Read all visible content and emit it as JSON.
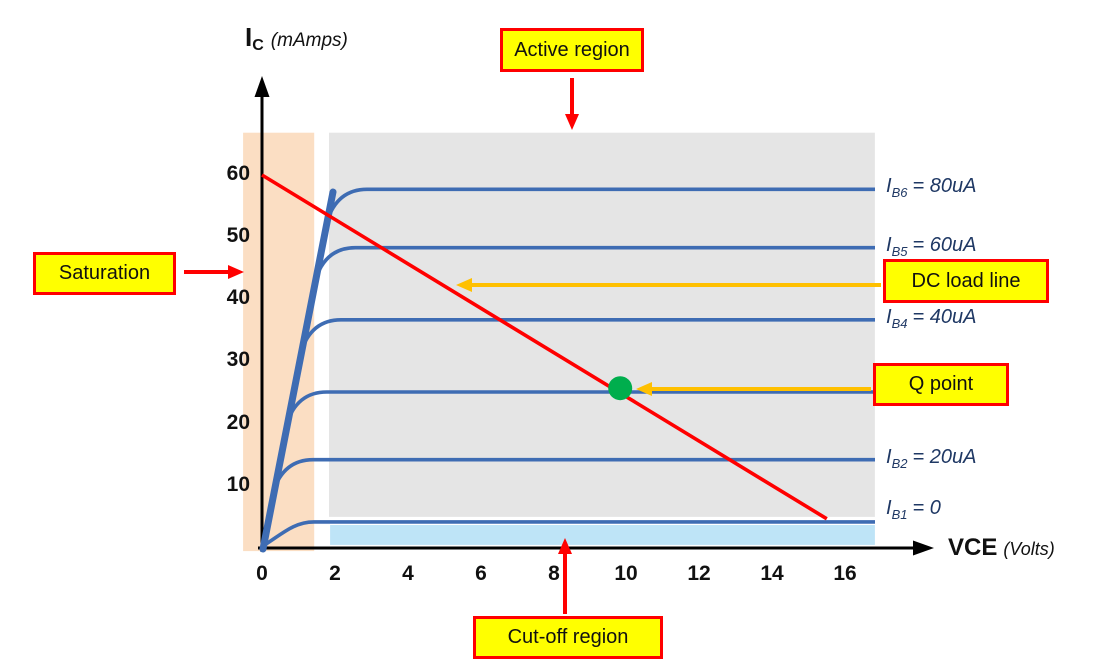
{
  "chart_data": {
    "type": "line",
    "x_axis": {
      "title": "VCE",
      "title_unit": "(Volts)",
      "ticks": [
        "0",
        "2",
        "4",
        "6",
        "8",
        "10",
        "12",
        "14",
        "16"
      ],
      "range_volts": [
        0,
        18.3
      ]
    },
    "y_axis": {
      "title": "I",
      "title_sub": "C",
      "title_unit": "(mAmps)",
      "ticks": [
        "10",
        "20",
        "30",
        "40",
        "50",
        "60"
      ],
      "range_mA": [
        0,
        75
      ]
    },
    "curves": [
      {
        "id": "IB1",
        "label": "IB1 = 0",
        "label_base": "I",
        "label_sub": "B1",
        "label_rest": "= 0",
        "flat_mA": 4.2
      },
      {
        "id": "IB2",
        "label": "IB2 = 20uA",
        "label_base": "I",
        "label_sub": "B2",
        "label_rest": "= 20uA",
        "flat_mA": 14.2
      },
      {
        "id": "IB3",
        "label": "",
        "label_base": "",
        "label_sub": "",
        "label_rest": "",
        "flat_mA": 25.1
      },
      {
        "id": "IB4",
        "label": "IB4 = 40uA",
        "label_base": "I",
        "label_sub": "B4",
        "label_rest": "= 40uA",
        "flat_mA": 36.7
      },
      {
        "id": "IB5",
        "label": "IB5 = 60uA",
        "label_base": "I",
        "label_sub": "B5",
        "label_rest": "= 60uA",
        "flat_mA": 48.3
      },
      {
        "id": "IB6",
        "label": "IB6 = 80uA",
        "label_base": "I",
        "label_sub": "B6",
        "label_rest": "= 80uA",
        "flat_mA": 57.7
      }
    ],
    "load_line": {
      "v_start": 0,
      "i_start_mA": 60,
      "v_end": 15.5,
      "i_end_mA": 4.7
    },
    "q_point": {
      "v": 9.83,
      "i_mA": 25.7
    },
    "regions": [
      {
        "id": "saturation",
        "color": "#FBDEC3",
        "v": [
          -0.52,
          1.43
        ],
        "i_mA": [
          -0.5,
          66.8
        ]
      },
      {
        "id": "active",
        "color": "#E5E5E5",
        "v": [
          1.84,
          16.82
        ],
        "i_mA": [
          5.0,
          66.8
        ]
      },
      {
        "id": "cutoff",
        "color": "#BEE4F7",
        "v": [
          1.87,
          16.82
        ],
        "i_mA": [
          0.5,
          3.7
        ]
      }
    ],
    "callouts": [
      {
        "id": "active-region",
        "label": "Active region"
      },
      {
        "id": "saturation",
        "label": "Saturation"
      },
      {
        "id": "dc-load-line",
        "label": "DC load line"
      },
      {
        "id": "q-point",
        "label": "Q point"
      },
      {
        "id": "cutoff-region",
        "label": "Cut-off region"
      }
    ],
    "colors": {
      "curve": "#3E6CB3",
      "load_line": "#FF0000",
      "q_point": "#00AE4D",
      "callout_fill": "#FFFF00",
      "callout_border": "#FF0000",
      "red_arrow": "#FF0000",
      "orange_arrow": "#FFC000",
      "axis": "#000000",
      "curve_label": "#1F3864"
    },
    "legend_position": "right-of-curves",
    "grid": false
  }
}
